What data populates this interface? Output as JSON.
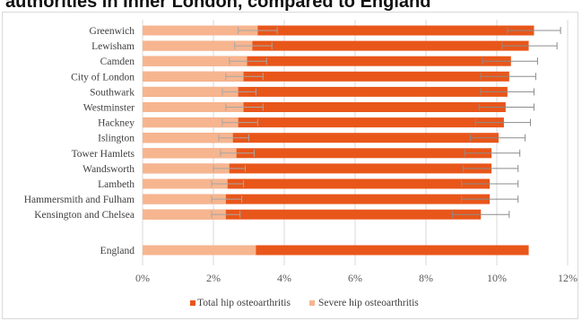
{
  "page": {
    "title": "authorities in Inner London, compared to England"
  },
  "colors": {
    "total": "#e8561a",
    "severe": "#f6b58f",
    "gridline": "#d9d9d9",
    "errorbar": "#8c8c8c"
  },
  "chart_data": {
    "type": "bar",
    "orientation": "horizontal",
    "stacked": "overlay",
    "categories": [
      "Greenwich",
      "Lewisham",
      "Camden",
      "City of London",
      "Southwark",
      "Westminster",
      "Hackney",
      "Islington",
      "Tower Hamlets",
      "Wandsworth",
      "Lambeth",
      "Hammersmith and Fulham",
      "Kensington and Chelsea",
      "England"
    ],
    "series": [
      {
        "name": "Total hip osteoarthritis",
        "values": [
          11.05,
          10.9,
          10.4,
          10.35,
          10.3,
          10.25,
          10.2,
          10.05,
          9.85,
          9.85,
          9.8,
          9.8,
          9.55,
          10.9
        ],
        "error_low": [
          10.3,
          10.15,
          9.6,
          9.55,
          9.55,
          9.5,
          9.4,
          9.25,
          9.1,
          9.05,
          9.0,
          9.0,
          8.75,
          null
        ],
        "error_high": [
          11.8,
          11.7,
          11.15,
          11.1,
          11.05,
          11.05,
          10.95,
          10.8,
          10.65,
          10.6,
          10.6,
          10.6,
          10.35,
          null
        ]
      },
      {
        "name": "Severe hip osteoarthritis",
        "values": [
          3.25,
          3.1,
          2.95,
          2.85,
          2.7,
          2.85,
          2.7,
          2.55,
          2.65,
          2.45,
          2.4,
          2.35,
          2.35,
          3.2
        ],
        "error_low": [
          2.7,
          2.6,
          2.45,
          2.35,
          2.25,
          2.35,
          2.25,
          2.15,
          2.2,
          2.0,
          1.95,
          1.95,
          1.95,
          null
        ],
        "error_high": [
          3.8,
          3.65,
          3.5,
          3.4,
          3.2,
          3.4,
          3.25,
          3.0,
          3.15,
          2.9,
          2.85,
          2.8,
          2.75,
          null
        ]
      }
    ],
    "x_ticks": [
      "0%",
      "2%",
      "4%",
      "6%",
      "8%",
      "10%",
      "12%"
    ],
    "xlim": [
      0,
      12
    ],
    "grid": true,
    "legend_position": "bottom"
  }
}
